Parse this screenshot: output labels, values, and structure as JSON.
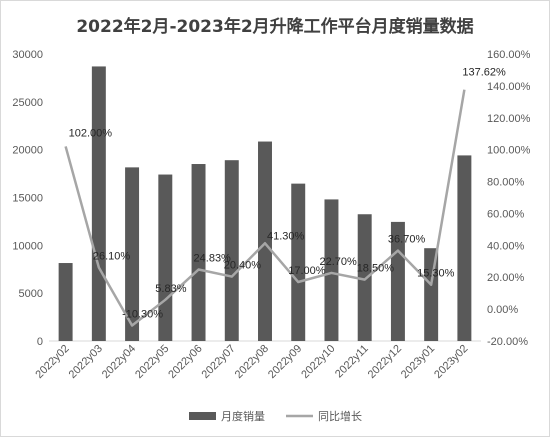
{
  "chart_data": {
    "type": "bar",
    "title": "2022年2月-2023年2月升降工作平台月度销量数据",
    "categories": [
      "2022y02",
      "2022y03",
      "2022y04",
      "2022y05",
      "2022y06",
      "2022y07",
      "2022y08",
      "2022y09",
      "2022y10",
      "2022y11",
      "2022y12",
      "2023y01",
      "2023y02"
    ],
    "series": [
      {
        "name": "月度销量",
        "type": "bar",
        "axis": "left",
        "color": "#595959",
        "values": [
          8150,
          28700,
          18150,
          17400,
          18500,
          18900,
          20850,
          16450,
          14800,
          13250,
          12450,
          9700,
          19400
        ]
      },
      {
        "name": "同比增长",
        "type": "line",
        "axis": "right",
        "color": "#a6a6a6",
        "values": [
          102.0,
          26.1,
          -10.3,
          5.83,
          24.83,
          20.4,
          41.3,
          17.0,
          22.7,
          18.5,
          36.7,
          15.3,
          137.62
        ],
        "labels": [
          "102.00%",
          "26.10%",
          "-10.30%",
          "5.83%",
          "24.83%",
          "20.40%",
          "41.30%",
          "17.00%",
          "22.70%",
          "18.50%",
          "36.70%",
          "15.30%",
          "137.62%"
        ]
      }
    ],
    "y_left": {
      "min": 0,
      "max": 30000,
      "ticks": [
        "0",
        "5000",
        "10000",
        "15000",
        "20000",
        "25000",
        "30000"
      ]
    },
    "y_right": {
      "min": -20,
      "max": 160,
      "ticks": [
        "-20.00%",
        "0.00%",
        "20.00%",
        "40.00%",
        "60.00%",
        "80.00%",
        "100.00%",
        "120.00%",
        "140.00%",
        "160.00%"
      ]
    },
    "grid": false,
    "legend_position": "bottom"
  }
}
